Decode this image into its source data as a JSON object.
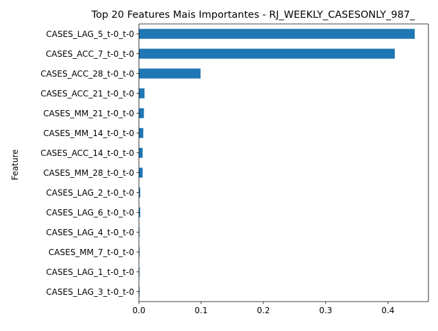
{
  "chart_data": {
    "type": "bar",
    "orientation": "horizontal",
    "title": "Top 20 Features Mais Importantes - RJ_WEEKLY_CASESONLY_987_",
    "xlabel": "",
    "ylabel": "Feature",
    "xlim": [
      0.0,
      0.465
    ],
    "xticks": [
      "0.0",
      "0.1",
      "0.2",
      "0.3",
      "0.4"
    ],
    "grid": false,
    "bar_color": "#1f77b4",
    "categories": [
      "CASES_LAG_5_t-0_t-0",
      "CASES_ACC_7_t-0_t-0",
      "CASES_ACC_28_t-0_t-0",
      "CASES_ACC_21_t-0_t-0",
      "CASES_MM_21_t-0_t-0",
      "CASES_MM_14_t-0_t-0",
      "CASES_ACC_14_t-0_t-0",
      "CASES_MM_28_t-0_t-0",
      "CASES_LAG_2_t-0_t-0",
      "CASES_LAG_6_t-0_t-0",
      "CASES_LAG_4_t-0_t-0",
      "CASES_MM_7_t-0_t-0",
      "CASES_LAG_1_t-0_t-0",
      "CASES_LAG_3_t-0_t-0"
    ],
    "values": [
      0.443,
      0.411,
      0.099,
      0.009,
      0.008,
      0.007,
      0.006,
      0.006,
      0.002,
      0.002,
      0.0005,
      0.0004,
      0.0003,
      0.0002
    ]
  }
}
